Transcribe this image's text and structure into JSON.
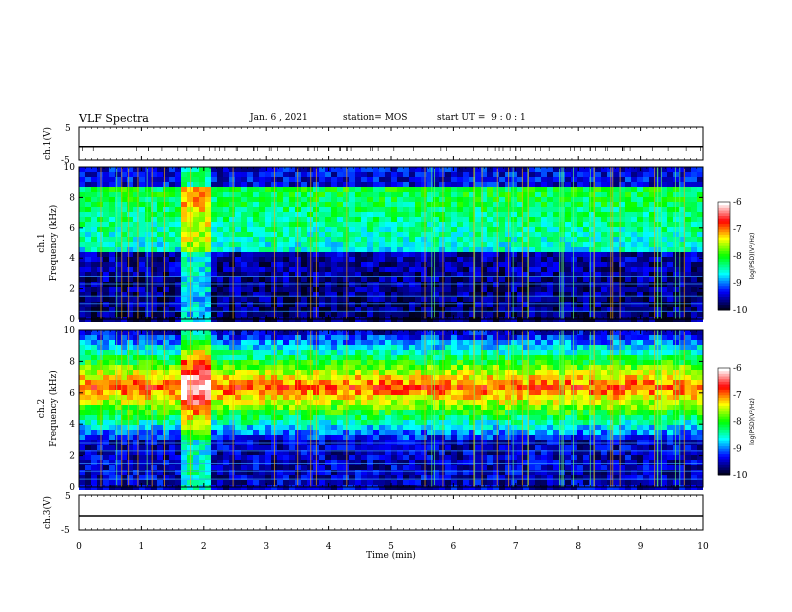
{
  "header": {
    "title": "VLF Spectra",
    "date": "Jan. 6 , 2021",
    "station": "station= MOS",
    "start": "start UT =  9 : 0 : 1"
  },
  "chart_data": [
    {
      "type": "line",
      "ylabel": "ch.1(V)",
      "ylim": [
        -5,
        5
      ],
      "yticks": [
        "5",
        "-5"
      ],
      "series": [
        {
          "values": [
            -1,
            -1
          ]
        }
      ]
    },
    {
      "type": "heatmap",
      "ylabel": "ch.1\nFrequency (kHz)",
      "ylim": [
        0,
        10
      ],
      "yticks": [
        "0",
        "2",
        "4",
        "6",
        "8",
        "10"
      ],
      "colorbar": {
        "label": "log(PSD)(V²/Hz)",
        "range": [
          -10,
          -6
        ],
        "ticks": [
          "-6",
          "-7",
          "-8",
          "-9",
          "-10"
        ]
      },
      "colors": [
        "#000020",
        "#0000ff",
        "#00ffff",
        "#00ff00",
        "#ffff00",
        "#ff0000",
        "#ffffff"
      ]
    },
    {
      "type": "heatmap",
      "ylabel": "ch.2\nFrequency (kHz)",
      "ylim": [
        0,
        10
      ],
      "yticks": [
        "0",
        "2",
        "4",
        "6",
        "8",
        "10"
      ],
      "colorbar": {
        "label": "log(PSD)(V²/Hz)",
        "range": [
          -10,
          -6
        ],
        "ticks": [
          "-6",
          "-7",
          "-8",
          "-9",
          "-10"
        ]
      }
    },
    {
      "type": "line",
      "ylabel": "ch.3(V)",
      "ylim": [
        -5,
        5
      ],
      "yticks": [
        "5",
        "-5"
      ],
      "series": [
        {
          "values": [
            -1,
            -1
          ]
        }
      ]
    }
  ],
  "xaxis": {
    "label": "Time (min)",
    "range": [
      0,
      10
    ],
    "ticks": [
      "0",
      "1",
      "2",
      "3",
      "4",
      "5",
      "6",
      "7",
      "8",
      "9",
      "10"
    ]
  }
}
